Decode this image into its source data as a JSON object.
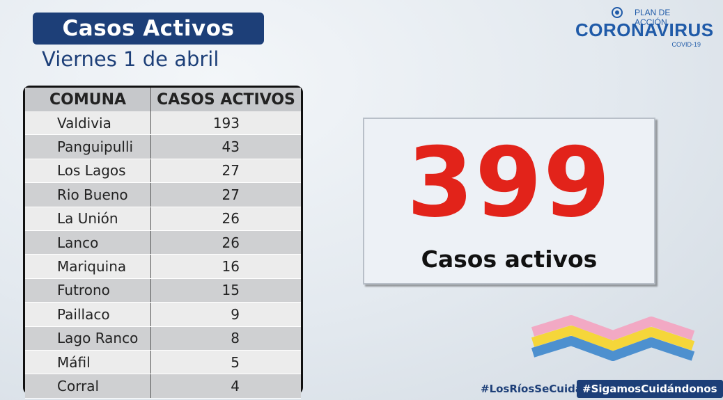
{
  "header": {
    "title": "Casos Activos",
    "date": "Viernes 1 de abril"
  },
  "logo": {
    "plan": "PLAN DE ACCIÓN",
    "name": "CORONAVIRUS",
    "sub": "COVID-19"
  },
  "table": {
    "headers": [
      "COMUNA",
      "CASOS ACTIVOS"
    ],
    "rows": [
      {
        "comuna": "Valdivia",
        "casos": "193"
      },
      {
        "comuna": "Panguipulli",
        "casos": "43"
      },
      {
        "comuna": "Los Lagos",
        "casos": "27"
      },
      {
        "comuna": "Rio Bueno",
        "casos": "27"
      },
      {
        "comuna": "La Unión",
        "casos": "26"
      },
      {
        "comuna": "Lanco",
        "casos": "26"
      },
      {
        "comuna": "Mariquina",
        "casos": "16"
      },
      {
        "comuna": "Futrono",
        "casos": "15"
      },
      {
        "comuna": "Paillaco",
        "casos": "9"
      },
      {
        "comuna": "Lago Ranco",
        "casos": "8"
      },
      {
        "comuna": "Máfil",
        "casos": "5"
      },
      {
        "comuna": "Corral",
        "casos": "4"
      }
    ]
  },
  "summary": {
    "total": "399",
    "label": "Casos activos"
  },
  "hashtags": {
    "first": "#LosRíosSeCuida",
    "second": "#SigamosCuidándonos"
  },
  "colors": {
    "brand_blue": "#1d3f78",
    "total_red": "#e2231a",
    "wave_pink": "#f2a9c4",
    "wave_yellow": "#f5d63a",
    "wave_blue": "#4d90cf"
  }
}
